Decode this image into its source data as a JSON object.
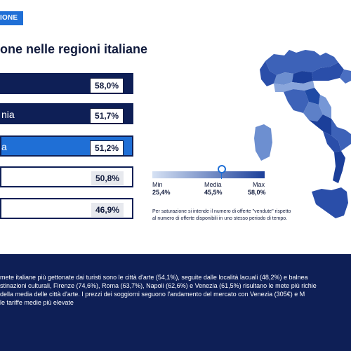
{
  "header": {
    "tag": "IONE",
    "title": "one nelle regioni italiane"
  },
  "chart_data": {
    "type": "bar",
    "categories": [
      "",
      "nia",
      "a",
      "",
      ""
    ],
    "values": [
      58.0,
      51.7,
      51.2,
      50.8,
      46.9
    ],
    "value_labels": [
      "58,0%",
      "51,7%",
      "51,2%",
      "50,8%",
      "46,9%"
    ]
  },
  "legend": {
    "min_label": "Min",
    "media_label": "Media",
    "max_label": "Max",
    "min_value": "25,4%",
    "media_value": "45,5%",
    "max_value": "58,0%",
    "min": 25.4,
    "media": 45.5,
    "max": 58.0,
    "color_low": "#d6e2f4",
    "color_high": "#1b3f9a"
  },
  "note": {
    "line1": "Per saturazione si intende il numero di offerte \"vendute\" rispetto",
    "line2": "al numero di offerte disponibili in uno stesso periodo di tempo."
  },
  "footer": {
    "line1": "mete italiane più gettonate dai turisti sono le città d'arte (54,1%), seguite dalle località lacuali (48,2%) e balnea",
    "line2": "stinazioni culturali, Firenze (74,6%), Roma (63,7%), Napoli (62,6%) e Venezia (61,5%) risultano le mete più richie",
    "line3": "della media delle città d'arte. I prezzi dei soggiorni seguono l'andamento del mercato con Venezia (305€) e M",
    "line4": "le tariffe medie più elevate"
  },
  "colors": {
    "dark": "#0e1f56",
    "accent": "#1f6fd6"
  }
}
